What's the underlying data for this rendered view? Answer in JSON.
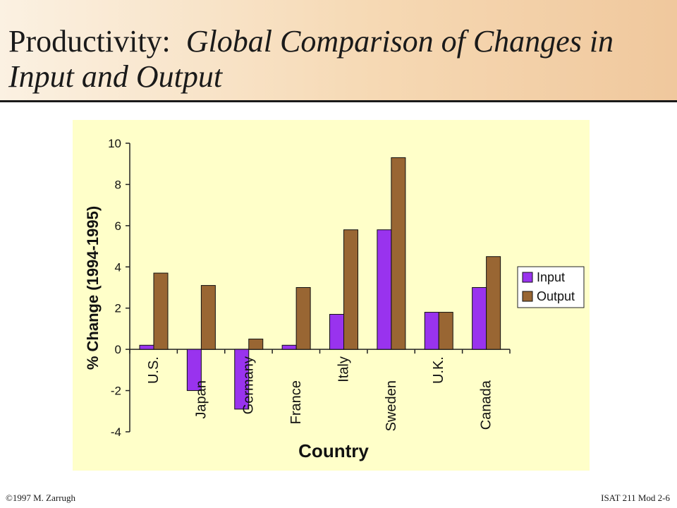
{
  "title": {
    "main": "Productivity:",
    "italic": "Global Comparison of Changes in Input and Output"
  },
  "footer": {
    "copyright": "©1997 M. Zarrugh",
    "course": "ISAT 211  Mod 2-6"
  },
  "colors": {
    "input": "#9933ee",
    "output": "#996633",
    "plot_bg": "#ffffc9"
  },
  "chart_data": {
    "type": "bar",
    "title": "",
    "xlabel": "Country",
    "ylabel": "% Change (1994-1995)",
    "ylim": [
      -4,
      10
    ],
    "yticks": [
      -4,
      -2,
      0,
      2,
      4,
      6,
      8,
      10
    ],
    "categories": [
      "U.S.",
      "Japan",
      "Germany",
      "France",
      "Italy",
      "Sweden",
      "U.K.",
      "Canada"
    ],
    "series": [
      {
        "name": "Input",
        "values": [
          0.2,
          -2.0,
          -2.9,
          0.2,
          1.7,
          5.8,
          1.8,
          3.0
        ]
      },
      {
        "name": "Output",
        "values": [
          3.7,
          3.1,
          0.5,
          3.0,
          5.8,
          9.3,
          1.8,
          4.5
        ]
      }
    ],
    "legend": "right",
    "grid": false
  }
}
